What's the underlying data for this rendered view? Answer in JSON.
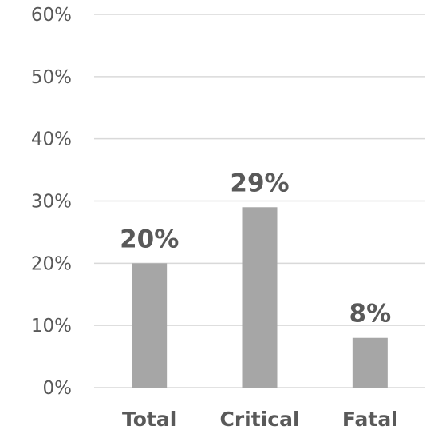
{
  "chart_data": {
    "type": "bar",
    "categories": [
      "Total",
      "Critical",
      "Fatal"
    ],
    "values": [
      20,
      29,
      8
    ],
    "data_labels": [
      "20%",
      "29%",
      "8%"
    ],
    "title": "",
    "xlabel": "",
    "ylabel": "",
    "ylim": [
      0,
      60
    ],
    "y_ticks": [
      0,
      10,
      20,
      30,
      40,
      50,
      60
    ],
    "y_tick_labels": [
      "0%",
      "10%",
      "20%",
      "30%",
      "40%",
      "50%",
      "60%"
    ],
    "grid": true,
    "legend": "none",
    "bar_color": "#a6a6a6",
    "gridline_color": "#d9d9d9",
    "text_color": "#595959"
  }
}
